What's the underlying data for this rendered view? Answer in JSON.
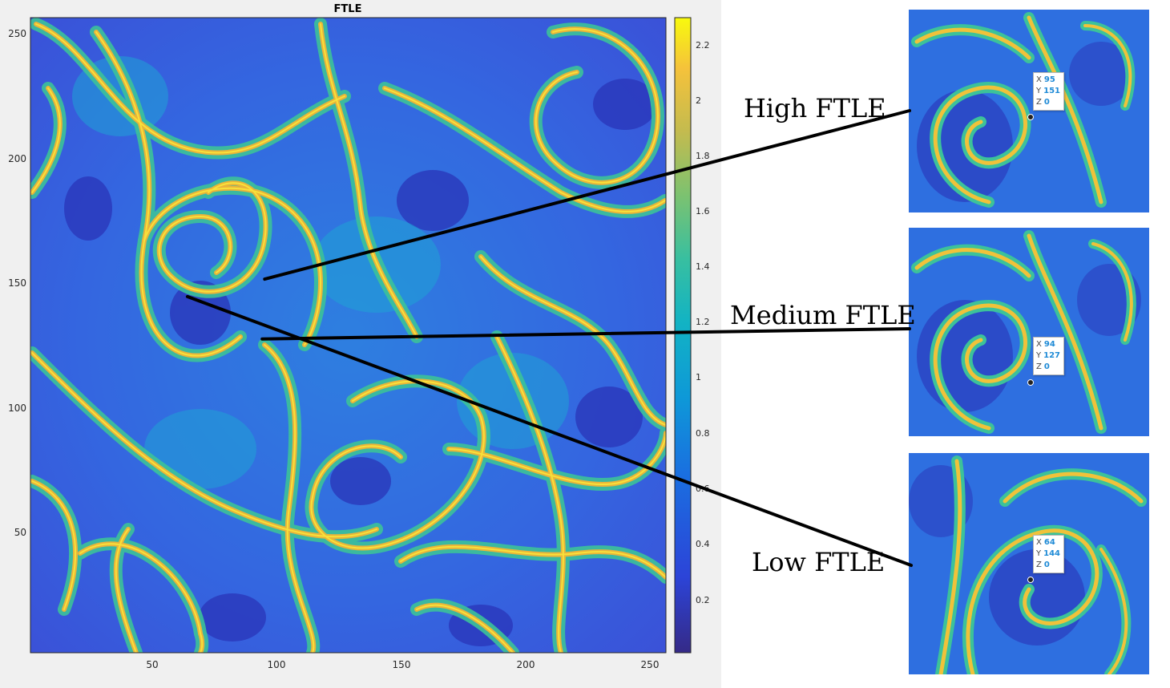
{
  "chart_data": {
    "type": "heatmap",
    "title": "FTLE",
    "xlim": [
      1,
      256
    ],
    "ylim": [
      1,
      256
    ],
    "xticks": [
      "50",
      "100",
      "150",
      "200",
      "250"
    ],
    "yticks": [
      "250",
      "200",
      "150",
      "100",
      "50"
    ],
    "colorbar": {
      "colormap": "parula",
      "clim": [
        0,
        2.3
      ],
      "ticks": [
        "2.2",
        "2",
        "1.8",
        "1.6",
        "1.4",
        "1.2",
        "1",
        "0.8",
        "0.6",
        "0.4",
        "0.2"
      ]
    },
    "annotations": [
      {
        "label": "High FTLE",
        "x": 95,
        "y": 151,
        "z": 0
      },
      {
        "label": "Medium FTLE",
        "x": 94,
        "y": 127,
        "z": 0
      },
      {
        "label": "Low FTLE",
        "x": 64,
        "y": 144,
        "z": 0
      }
    ]
  },
  "tooltip_keys": {
    "x": "X",
    "y": "Y",
    "z": "Z"
  },
  "colors": {
    "low": "#3a3fd0",
    "mid": "#2fa8d8",
    "ridge_green": "#3fc48a",
    "ridge_yellow": "#f5d63a",
    "ridge_orange": "#f0b840",
    "connector": "#000000"
  }
}
